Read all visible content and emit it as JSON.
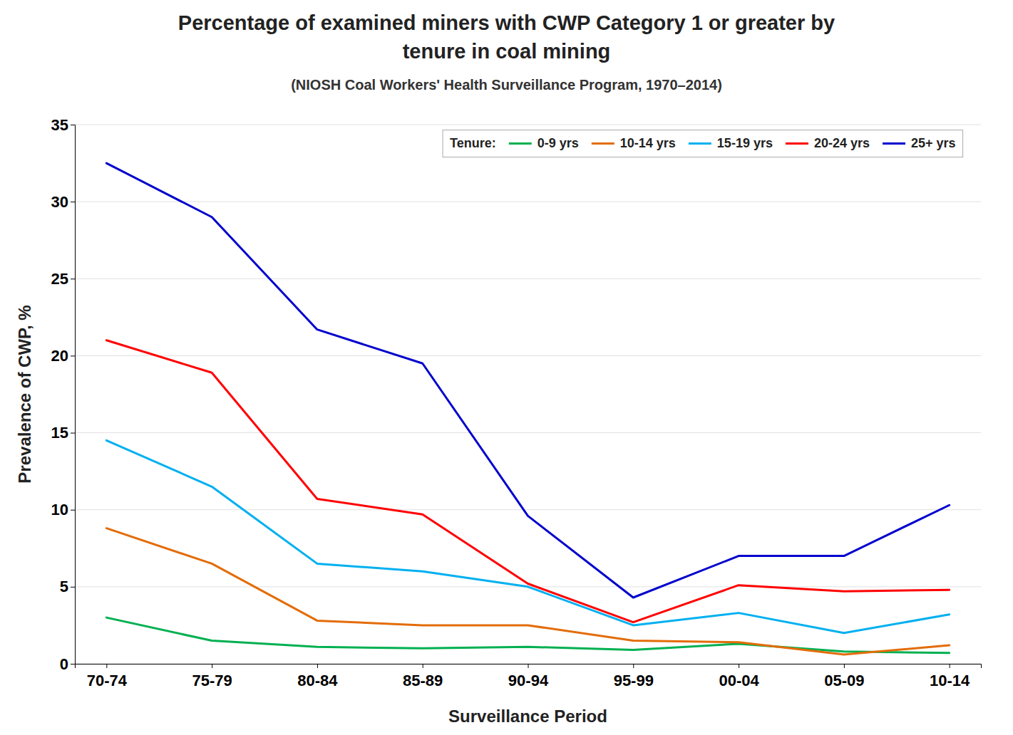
{
  "chart_data": {
    "type": "line",
    "title": [
      "Percentage of examined miners with CWP Category 1 or greater by",
      "tenure in coal mining"
    ],
    "subtitle": "(NIOSH Coal Workers' Health Surveillance Program, 1970–2014)",
    "x_label": "Surveillance Period",
    "y_label": "Prevalence of CWP, %",
    "categories": [
      "70-74",
      "75-79",
      "80-84",
      "85-89",
      "90-94",
      "95-99",
      "00-04",
      "05-09",
      "10-14"
    ],
    "series": [
      {
        "name": "0-9 yrs",
        "color": "#00b050",
        "values": [
          3.0,
          1.5,
          1.1,
          1.0,
          1.1,
          0.9,
          1.3,
          0.8,
          0.7
        ]
      },
      {
        "name": "10-14 yrs",
        "color": "#e36c09",
        "values": [
          8.8,
          6.5,
          2.8,
          2.5,
          2.5,
          1.5,
          1.4,
          0.6,
          1.2
        ]
      },
      {
        "name": "15-19 yrs",
        "color": "#00b0f0",
        "values": [
          14.5,
          11.5,
          6.5,
          6.0,
          5.0,
          2.5,
          3.3,
          2.0,
          3.2
        ]
      },
      {
        "name": "20-24 yrs",
        "color": "#ff0000",
        "values": [
          21.0,
          18.9,
          10.7,
          9.7,
          5.2,
          2.7,
          5.1,
          4.7,
          4.8
        ]
      },
      {
        "name": "25+ yrs",
        "color": "#0000cd",
        "values": [
          32.5,
          29.0,
          21.7,
          19.5,
          9.6,
          4.3,
          7.0,
          7.0,
          10.3
        ]
      }
    ],
    "ylim": [
      0,
      35
    ],
    "yticks": [
      0,
      5,
      10,
      15,
      20,
      25,
      30,
      35
    ],
    "grid": true,
    "legend": "upper right",
    "legend_title": "Tenure:"
  }
}
